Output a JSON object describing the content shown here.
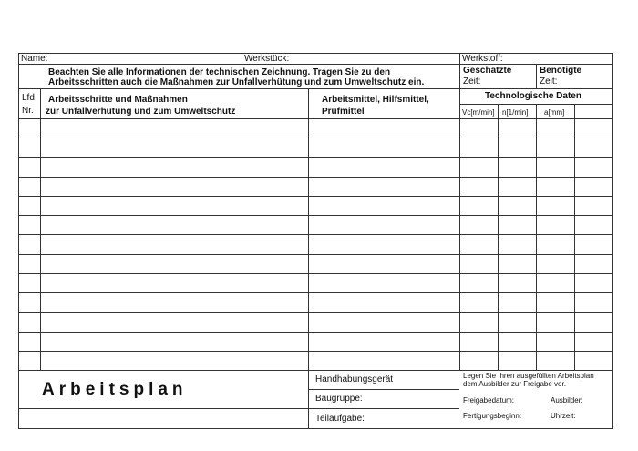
{
  "header": {
    "name_label": "Name:",
    "werkstueck_label": "Werkstück:",
    "werkstoff_label": "Werkstoff:"
  },
  "instruction": {
    "line1": "Beachten Sie alle Informationen der technischen Zeichnung. Tragen Sie zu den",
    "line2": "Arbeitsschritten auch die Maßnahmen zur Unfallverhütung und zum Umweltschutz ein."
  },
  "times": {
    "estimated_line1": "Geschätzte",
    "estimated_line2": "Zeit:",
    "required_line1": "Benötigte",
    "required_line2": "Zeit:"
  },
  "columns": {
    "lfd1": "Lfd",
    "lfd2": "Nr.",
    "steps1": "Arbeitsschritte und Maßnahmen",
    "steps2": "zur Unfallverhütung und zum Umweltschutz",
    "tools1": "Arbeitsmittel, Hilfsmittel,",
    "tools2": "Prüfmittel",
    "tech": "Technologische Daten",
    "vc": "Vc[m/min]",
    "n": "n[1/min]",
    "a": "a[mm]"
  },
  "row_count": 13,
  "footer": {
    "title": "Arbeitsplan",
    "handling": "Handhabungsgerät",
    "assembly": "Baugruppe:",
    "subtask": "Teilaufgabe:",
    "note1": "Legen Sie Ihren ausgefüllten Arbeitsplan",
    "note2": "dem Ausbilder zur Freigabe vor.",
    "release_date": "Freigabedatum:",
    "instructor": "Ausbilder:",
    "production_start": "Fertigungsbeginn:",
    "time": "Uhrzeit:"
  }
}
